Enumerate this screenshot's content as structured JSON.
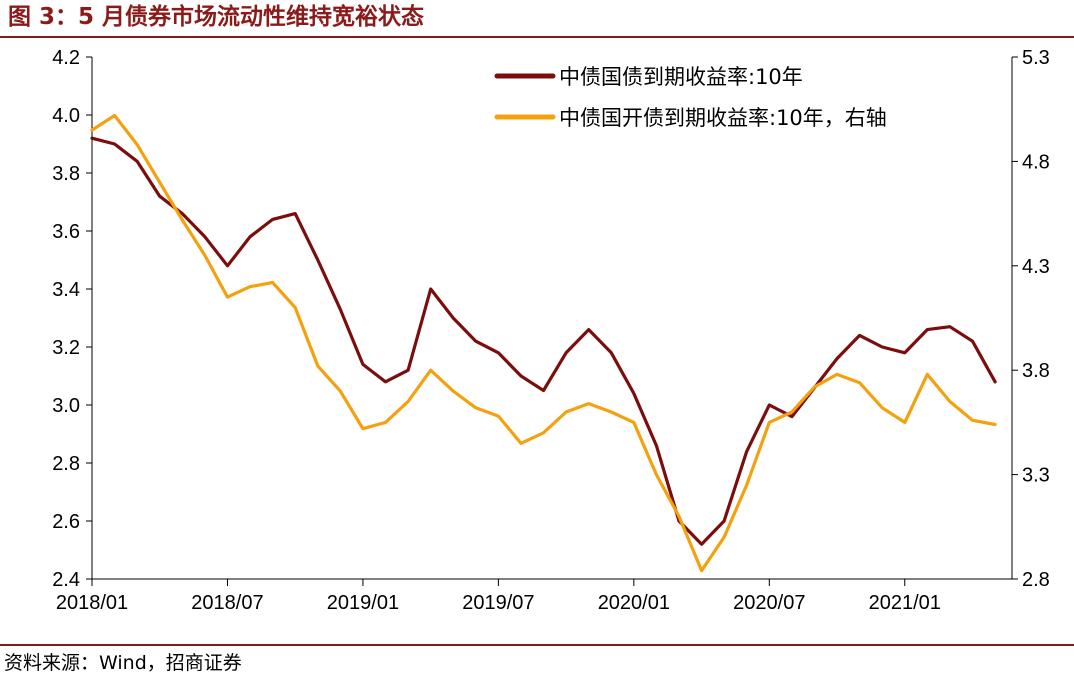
{
  "figure": {
    "title": "图 3：5 月债券市场流动性维持宽裕状态",
    "source": "资料来源：Wind，招商证券"
  },
  "colors": {
    "rule": "#8B1A1A",
    "series_cgb": "#7B0D0D",
    "series_cdb": "#F5A00F"
  },
  "chart_data": {
    "type": "line",
    "grid": false,
    "legend_position": "top-right",
    "x_ticks": [
      "2018/01",
      "2018/07",
      "2019/01",
      "2019/07",
      "2020/01",
      "2020/07",
      "2021/01"
    ],
    "x_range": [
      "2018/01",
      "2021/05"
    ],
    "y_left": {
      "range": [
        2.4,
        4.2
      ],
      "ticks": [
        "2.4",
        "2.6",
        "2.8",
        "3.0",
        "3.2",
        "3.4",
        "3.6",
        "3.8",
        "4.0",
        "4.2"
      ]
    },
    "y_right": {
      "range": [
        2.8,
        5.3
      ],
      "ticks": [
        "2.8",
        "3.3",
        "3.8",
        "4.3",
        "4.8",
        "5.3"
      ]
    },
    "series": [
      {
        "name": "中债国债到期收益率:10年",
        "axis": "left",
        "x": [
          "2018/01",
          "2018/02",
          "2018/03",
          "2018/04",
          "2018/05",
          "2018/06",
          "2018/07",
          "2018/08",
          "2018/09",
          "2018/10",
          "2018/11",
          "2018/12",
          "2019/01",
          "2019/02",
          "2019/03",
          "2019/04",
          "2019/05",
          "2019/06",
          "2019/07",
          "2019/08",
          "2019/09",
          "2019/10",
          "2019/11",
          "2019/12",
          "2020/01",
          "2020/02",
          "2020/03",
          "2020/04",
          "2020/05",
          "2020/06",
          "2020/07",
          "2020/08",
          "2020/09",
          "2020/10",
          "2020/11",
          "2020/12",
          "2021/01",
          "2021/02",
          "2021/03",
          "2021/04",
          "2021/05"
        ],
        "y": [
          3.92,
          3.9,
          3.84,
          3.72,
          3.66,
          3.58,
          3.48,
          3.58,
          3.64,
          3.66,
          3.5,
          3.33,
          3.14,
          3.08,
          3.12,
          3.4,
          3.3,
          3.22,
          3.18,
          3.1,
          3.05,
          3.18,
          3.26,
          3.18,
          3.04,
          2.86,
          2.6,
          2.52,
          2.6,
          2.84,
          3.0,
          2.96,
          3.06,
          3.16,
          3.24,
          3.2,
          3.18,
          3.26,
          3.27,
          3.22,
          3.08
        ]
      },
      {
        "name": "中债国开债到期收益率:10年，右轴",
        "axis": "right",
        "x": [
          "2018/01",
          "2018/02",
          "2018/03",
          "2018/04",
          "2018/05",
          "2018/06",
          "2018/07",
          "2018/08",
          "2018/09",
          "2018/10",
          "2018/11",
          "2018/12",
          "2019/01",
          "2019/02",
          "2019/03",
          "2019/04",
          "2019/05",
          "2019/06",
          "2019/07",
          "2019/08",
          "2019/09",
          "2019/10",
          "2019/11",
          "2019/12",
          "2020/01",
          "2020/02",
          "2020/03",
          "2020/04",
          "2020/05",
          "2020/06",
          "2020/07",
          "2020/08",
          "2020/09",
          "2020/10",
          "2020/11",
          "2020/12",
          "2021/01",
          "2021/02",
          "2021/03",
          "2021/04",
          "2021/05"
        ],
        "y": [
          4.95,
          5.02,
          4.88,
          4.7,
          4.52,
          4.35,
          4.15,
          4.2,
          4.22,
          4.1,
          3.82,
          3.7,
          3.52,
          3.55,
          3.65,
          3.8,
          3.7,
          3.62,
          3.58,
          3.45,
          3.5,
          3.6,
          3.64,
          3.6,
          3.55,
          3.3,
          3.1,
          2.84,
          3.0,
          3.25,
          3.55,
          3.6,
          3.72,
          3.78,
          3.74,
          3.62,
          3.55,
          3.78,
          3.65,
          3.56,
          3.54
        ]
      }
    ]
  }
}
